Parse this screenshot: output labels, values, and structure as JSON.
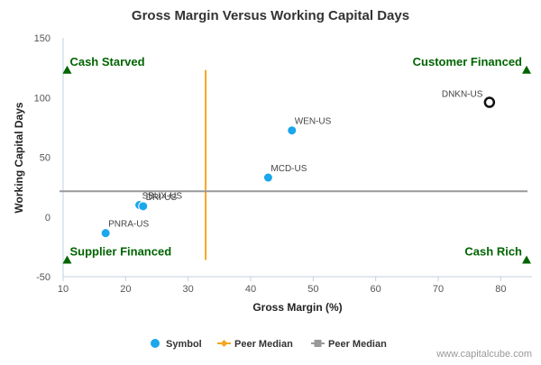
{
  "chart_data": {
    "type": "scatter",
    "title": "Gross Margin Versus Working Capital Days",
    "xlabel": "Gross Margin (%)",
    "ylabel": "Working Capital Days",
    "xlim": [
      10,
      85
    ],
    "ylim": [
      -50,
      150
    ],
    "x_ticks": [
      10,
      20,
      30,
      40,
      50,
      60,
      70,
      80
    ],
    "y_ticks": [
      -50,
      0,
      50,
      100,
      150
    ],
    "grid": false,
    "legend_position": "bottom",
    "series": [
      {
        "name": "Symbol",
        "color": "#1aa7ec",
        "points": [
          {
            "label": "DNKN-US",
            "x": 78.2,
            "y": 96,
            "highlight": true
          },
          {
            "label": "WEN-US",
            "x": 46.6,
            "y": 72.5
          },
          {
            "label": "MCD-US",
            "x": 42.8,
            "y": 33
          },
          {
            "label": "SBUX-US",
            "x": 22.2,
            "y": 10
          },
          {
            "label": "DRI-US",
            "x": 22.8,
            "y": 9
          },
          {
            "label": "PNRA-US",
            "x": 16.8,
            "y": -13.5
          }
        ]
      },
      {
        "name": "Peer Median",
        "color": "#f5a623",
        "orientation": "vertical",
        "value": 32.8,
        "range": [
          -36,
          123
        ]
      },
      {
        "name": "Peer Median",
        "color": "#999999",
        "orientation": "horizontal",
        "value": 21.5,
        "range": [
          10,
          85
        ]
      }
    ],
    "quadrants": [
      {
        "label": "Cash Starved",
        "x": 10.5,
        "y": 123,
        "anchor": "start"
      },
      {
        "label": "Customer Financed",
        "x": 85,
        "y": 123,
        "anchor": "end"
      },
      {
        "label": "Supplier Financed",
        "x": 10.5,
        "y": -36,
        "anchor": "start"
      },
      {
        "label": "Cash Rich",
        "x": 85,
        "y": -36,
        "anchor": "end"
      }
    ],
    "quadrant_color": "#006400",
    "credit": "www.capitalcube.com"
  }
}
